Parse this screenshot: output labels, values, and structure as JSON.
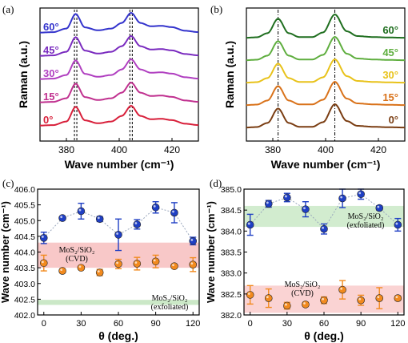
{
  "chart_data": [
    {
      "panel": "(a)",
      "type": "line",
      "xlabel": "Wave number (cm⁻¹)",
      "ylabel": "Raman (a.u.)",
      "xlim": [
        370,
        430
      ],
      "xticks": [
        380,
        400,
        420
      ],
      "peaks_marked": [
        383.5,
        404.5
      ],
      "series": [
        {
          "name": "60°",
          "color": "#3333cc",
          "x": [
            370,
            375,
            380,
            383.5,
            387,
            392,
            397,
            401,
            404.5,
            408,
            412,
            416,
            420,
            425,
            430
          ],
          "y": [
            0.12,
            0.14,
            0.3,
            0.95,
            0.35,
            0.22,
            0.3,
            0.55,
            1.0,
            0.55,
            0.4,
            0.42,
            0.36,
            0.2,
            0.14
          ]
        },
        {
          "name": "45°",
          "color": "#7a2bbf",
          "x": [
            370,
            375,
            380,
            383.5,
            387,
            392,
            397,
            401,
            404.5,
            408,
            412,
            416,
            420,
            425,
            430
          ],
          "y": [
            0.12,
            0.14,
            0.3,
            0.95,
            0.35,
            0.22,
            0.3,
            0.55,
            1.0,
            0.55,
            0.4,
            0.42,
            0.36,
            0.2,
            0.14
          ]
        },
        {
          "name": "30°",
          "color": "#b03fc0",
          "x": [
            370,
            375,
            380,
            383.5,
            387,
            392,
            397,
            401,
            404.5,
            408,
            412,
            416,
            420,
            425,
            430
          ],
          "y": [
            0.12,
            0.14,
            0.3,
            0.95,
            0.35,
            0.22,
            0.3,
            0.55,
            1.0,
            0.55,
            0.4,
            0.42,
            0.36,
            0.2,
            0.14
          ]
        },
        {
          "name": "15°",
          "color": "#c0308f",
          "x": [
            370,
            375,
            380,
            383.5,
            387,
            392,
            397,
            401,
            404.5,
            408,
            412,
            416,
            420,
            425,
            430
          ],
          "y": [
            0.12,
            0.14,
            0.3,
            0.95,
            0.35,
            0.22,
            0.3,
            0.55,
            1.0,
            0.55,
            0.4,
            0.42,
            0.36,
            0.2,
            0.14
          ]
        },
        {
          "name": "0°",
          "color": "#d81f3a",
          "x": [
            370,
            375,
            380,
            383.5,
            387,
            392,
            397,
            401,
            404.5,
            408,
            412,
            416,
            420,
            425,
            430
          ],
          "y": [
            0.12,
            0.14,
            0.3,
            0.95,
            0.35,
            0.22,
            0.3,
            0.55,
            1.0,
            0.55,
            0.4,
            0.42,
            0.36,
            0.2,
            0.14
          ]
        }
      ]
    },
    {
      "panel": "(b)",
      "type": "line",
      "xlabel": "Wave number (cm⁻¹)",
      "ylabel": "Raman (a.u.)",
      "xlim": [
        370,
        430
      ],
      "xticks": [
        380,
        400,
        420
      ],
      "peaks_marked": [
        382,
        403.5
      ],
      "series": [
        {
          "name": "60°",
          "color": "#1f6e1f",
          "x": [
            370,
            374,
            378,
            382,
            386,
            390,
            395,
            399,
            403.5,
            408,
            412,
            418,
            424,
            430
          ],
          "y": [
            0.03,
            0.05,
            0.22,
            0.82,
            0.22,
            0.06,
            0.06,
            0.25,
            1.0,
            0.3,
            0.1,
            0.06,
            0.04,
            0.03
          ]
        },
        {
          "name": "45°",
          "color": "#5fae3f",
          "x": [
            370,
            374,
            378,
            382,
            386,
            390,
            395,
            399,
            403.5,
            408,
            412,
            418,
            424,
            430
          ],
          "y": [
            0.03,
            0.05,
            0.22,
            0.82,
            0.22,
            0.06,
            0.06,
            0.25,
            1.0,
            0.3,
            0.1,
            0.06,
            0.04,
            0.03
          ]
        },
        {
          "name": "30°",
          "color": "#e8c21a",
          "x": [
            370,
            374,
            378,
            382,
            386,
            390,
            395,
            399,
            403.5,
            408,
            412,
            418,
            424,
            430
          ],
          "y": [
            0.03,
            0.05,
            0.22,
            0.82,
            0.22,
            0.06,
            0.06,
            0.25,
            1.0,
            0.3,
            0.1,
            0.06,
            0.04,
            0.03
          ]
        },
        {
          "name": "15°",
          "color": "#d9721a",
          "x": [
            370,
            374,
            378,
            382,
            386,
            390,
            395,
            399,
            403.5,
            408,
            412,
            418,
            424,
            430
          ],
          "y": [
            0.03,
            0.05,
            0.22,
            0.82,
            0.22,
            0.06,
            0.06,
            0.25,
            1.0,
            0.3,
            0.1,
            0.06,
            0.04,
            0.03
          ]
        },
        {
          "name": "0°",
          "color": "#7a3d12",
          "x": [
            370,
            374,
            378,
            382,
            386,
            390,
            395,
            399,
            403.5,
            408,
            412,
            418,
            424,
            430
          ],
          "y": [
            0.03,
            0.05,
            0.22,
            0.82,
            0.22,
            0.06,
            0.06,
            0.25,
            1.0,
            0.3,
            0.1,
            0.06,
            0.04,
            0.03
          ]
        }
      ]
    },
    {
      "panel": "(c)",
      "type": "scatter",
      "xlabel": "θ (deg.)",
      "ylabel": "Wave number (cm⁻¹)",
      "xlim": [
        -5,
        125
      ],
      "ylim": [
        402.0,
        406.0
      ],
      "xticks": [
        0,
        30,
        60,
        90,
        120
      ],
      "yticks": [
        "402.0",
        "402.5",
        "403.0",
        "403.5",
        "404.0",
        "404.5",
        "405.0",
        "405.5",
        "406.0"
      ],
      "series": [
        {
          "color": "#1f3fc4",
          "x": [
            0,
            15,
            30,
            45,
            60,
            75,
            90,
            105,
            120
          ],
          "y": [
            404.45,
            405.08,
            405.3,
            405.05,
            404.55,
            404.88,
            405.42,
            405.25,
            404.35
          ],
          "err": [
            0.18,
            0.05,
            0.25,
            0.08,
            0.5,
            0.15,
            0.18,
            0.32,
            0.12
          ]
        },
        {
          "color": "#f28a1e",
          "x": [
            0,
            15,
            30,
            45,
            60,
            75,
            90,
            105,
            120
          ],
          "y": [
            403.65,
            403.4,
            403.5,
            403.35,
            403.62,
            403.63,
            403.7,
            403.55,
            403.6
          ],
          "err": [
            0.25,
            0.05,
            0.05,
            0.1,
            0.15,
            0.2,
            0.2,
            0.05,
            0.22
          ]
        }
      ],
      "bands": [
        {
          "ymin": 403.5,
          "ymax": 404.3,
          "color": "#f6b5b5",
          "label_lines": [
            "MoS₂/SiO₂",
            "(CVD)"
          ]
        },
        {
          "ymin": 402.32,
          "ymax": 402.48,
          "color": "#b9e0b4",
          "label_lines": [
            "MoS₂/SiO₂",
            "(exfoliated)"
          ]
        }
      ]
    },
    {
      "panel": "(d)",
      "type": "scatter",
      "xlabel": "θ (deg.)",
      "ylabel": "Wave number (cm⁻¹)",
      "xlim": [
        -5,
        125
      ],
      "ylim": [
        382.0,
        385.0
      ],
      "xticks": [
        0,
        30,
        60,
        90,
        120
      ],
      "yticks": [
        "382.0",
        "382.5",
        "383.0",
        "383.5",
        "384.0",
        "384.5",
        "385.0"
      ],
      "series": [
        {
          "color": "#1f3fc4",
          "x": [
            0,
            15,
            30,
            45,
            60,
            75,
            90,
            105,
            120
          ],
          "y": [
            384.15,
            384.65,
            384.8,
            384.52,
            384.05,
            384.78,
            384.88,
            384.55,
            384.15
          ],
          "err": [
            0.25,
            0.08,
            0.1,
            0.18,
            0.12,
            0.22,
            0.12,
            0.05,
            0.15
          ]
        },
        {
          "color": "#f28a1e",
          "x": [
            0,
            15,
            30,
            45,
            60,
            75,
            90,
            105,
            120
          ],
          "y": [
            382.48,
            382.4,
            382.22,
            382.25,
            382.35,
            382.6,
            382.35,
            382.4,
            382.4
          ],
          "err": [
            0.22,
            0.22,
            0.08,
            0.05,
            0.08,
            0.22,
            0.12,
            0.25,
            0.05
          ]
        }
      ],
      "bands": [
        {
          "ymin": 384.1,
          "ymax": 384.6,
          "color": "#c3e5bf",
          "label_lines": [
            "MoS₂/SiO₂",
            "(exfoliated)"
          ]
        },
        {
          "ymin": 382.05,
          "ymax": 382.7,
          "color": "#f8c4c4",
          "label_lines": [
            "MoS₂/SiO₂",
            "(CVD)"
          ]
        }
      ]
    }
  ]
}
